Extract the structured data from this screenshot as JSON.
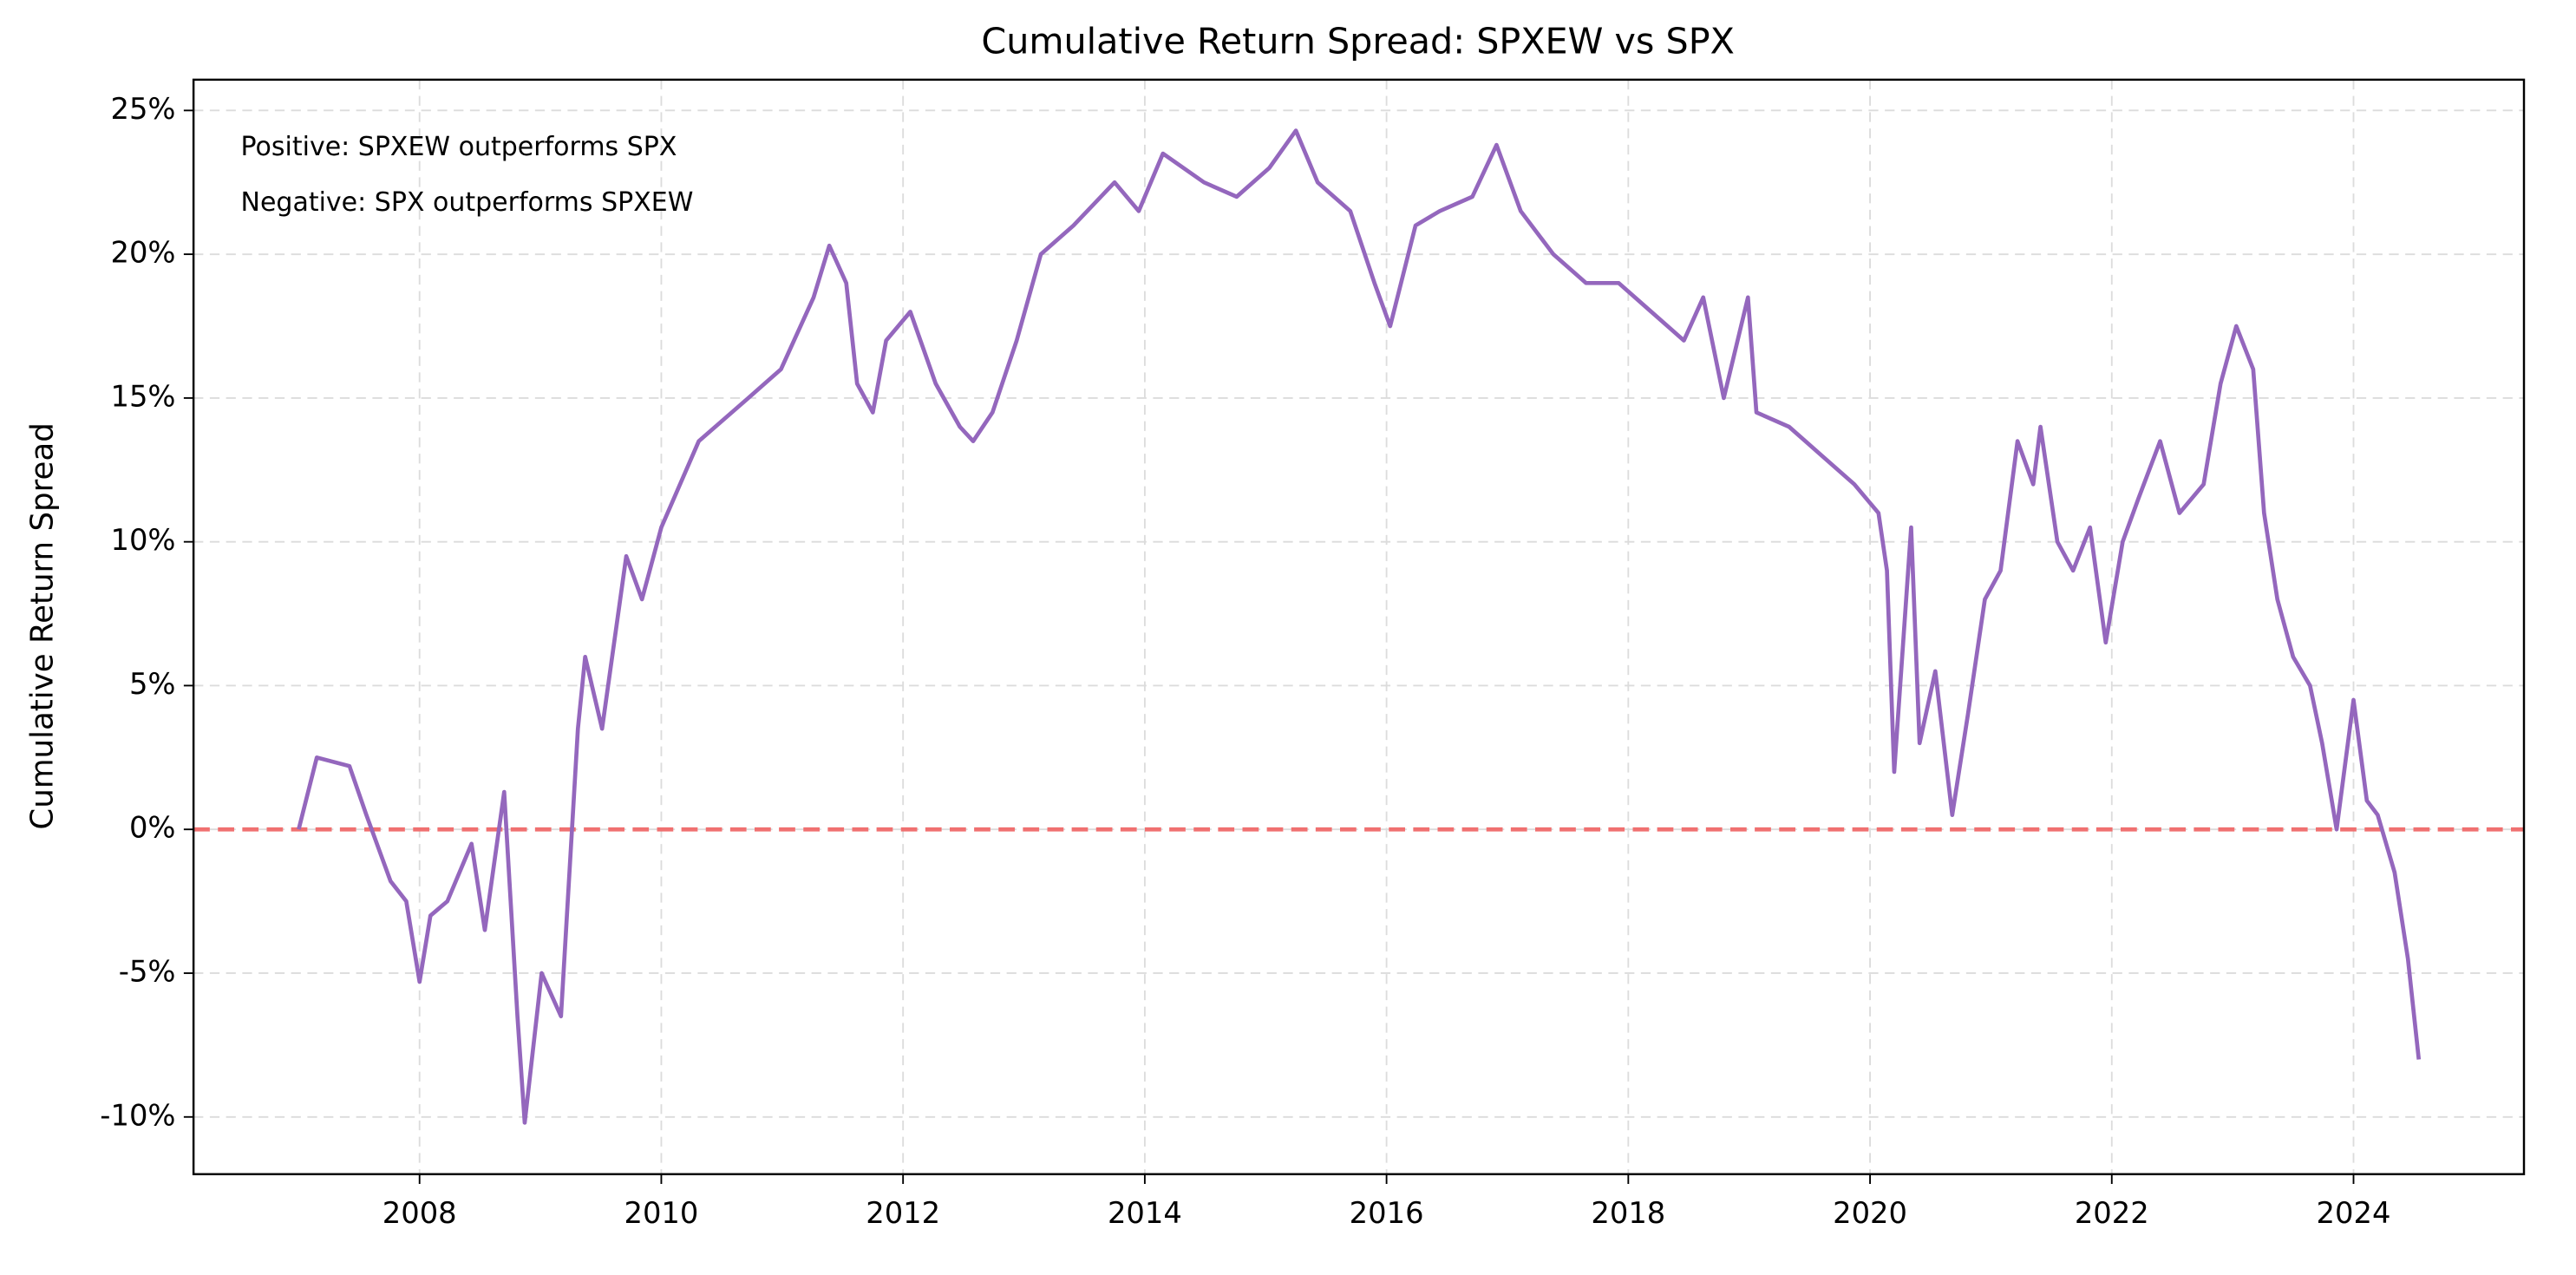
{
  "chart_data": {
    "type": "line",
    "title": "Cumulative Return Spread: SPXEW vs SPX",
    "y_label": "Cumulative Return Spread",
    "annotations": [
      "Positive: SPXEW outperforms SPX",
      "Negative: SPX outperforms SPXEW"
    ],
    "x": [
      2007.0,
      2007.15,
      2007.42,
      2007.56,
      2007.76,
      2007.89,
      2008.0,
      2008.09,
      2008.23,
      2008.43,
      2008.54,
      2008.7,
      2008.81,
      2008.87,
      2009.01,
      2009.17,
      2009.31,
      2009.37,
      2009.51,
      2009.71,
      2009.84,
      2010.0,
      2010.31,
      2010.72,
      2010.99,
      2011.26,
      2011.39,
      2011.53,
      2011.62,
      2011.75,
      2011.86,
      2012.06,
      2012.27,
      2012.47,
      2012.58,
      2012.74,
      2012.94,
      2013.14,
      2013.41,
      2013.75,
      2013.95,
      2014.15,
      2014.49,
      2014.76,
      2015.03,
      2015.25,
      2015.43,
      2015.7,
      2015.9,
      2016.03,
      2016.24,
      2016.44,
      2016.71,
      2016.91,
      2017.11,
      2017.38,
      2017.65,
      2017.92,
      2018.19,
      2018.46,
      2018.62,
      2018.79,
      2018.99,
      2019.06,
      2019.33,
      2019.6,
      2019.87,
      2020.07,
      2020.14,
      2020.2,
      2020.34,
      2020.41,
      2020.54,
      2020.68,
      2020.81,
      2020.95,
      2021.08,
      2021.22,
      2021.35,
      2021.41,
      2021.55,
      2021.68,
      2021.82,
      2021.95,
      2022.09,
      2022.22,
      2022.4,
      2022.56,
      2022.76,
      2022.9,
      2023.03,
      2023.17,
      2023.26,
      2023.37,
      2023.5,
      2023.64,
      2023.74,
      2023.86,
      2024.0,
      2024.11,
      2024.2,
      2024.34,
      2024.45,
      2024.54
    ],
    "series": [
      {
        "name": "Spread",
        "color": "#9467bd",
        "values": [
          0,
          2.5,
          2.2,
          0.5,
          -1.8,
          -2.5,
          -5.3,
          -3,
          -2.5,
          -0.5,
          -3.5,
          1.3,
          -6.5,
          -10.2,
          -5,
          -6.5,
          3.5,
          6,
          3.5,
          9.5,
          8,
          10.5,
          13.5,
          15,
          16,
          18.5,
          20.3,
          19,
          15.5,
          14.5,
          17,
          18,
          15.5,
          14,
          13.5,
          14.5,
          17,
          20,
          21,
          22.5,
          21.5,
          23.5,
          22.5,
          22,
          23,
          24.3,
          22.5,
          21.5,
          19,
          17.5,
          21,
          21.5,
          22,
          23.8,
          21.5,
          20,
          19,
          19,
          18,
          17,
          18.5,
          15,
          18.5,
          14.5,
          14,
          13,
          12,
          11,
          9,
          2,
          10.5,
          3,
          5.5,
          0.5,
          4,
          8,
          9,
          13.5,
          12,
          14,
          10,
          9,
          10.5,
          6.5,
          10,
          11.5,
          13.5,
          11,
          12,
          15.5,
          17.5,
          16,
          11,
          8,
          6,
          5,
          3,
          0,
          4.5,
          1,
          0.5,
          -1.5,
          -4.5,
          -8
        ]
      }
    ],
    "reference_line": {
      "y": 0,
      "color": "#f07070"
    },
    "xlim": [
      2006.13,
      2025.41
    ],
    "xticks": [
      2008,
      2010,
      2012,
      2014,
      2016,
      2018,
      2020,
      2022,
      2024
    ],
    "ylim": [
      -11.99,
      26.07
    ],
    "yticks": [
      {
        "value": -10,
        "label": "-10%"
      },
      {
        "value": -5,
        "label": "-5%"
      },
      {
        "value": 0,
        "label": "0%"
      },
      {
        "value": 5,
        "label": "5%"
      },
      {
        "value": 10,
        "label": "10%"
      },
      {
        "value": 15,
        "label": "15%"
      },
      {
        "value": 20,
        "label": "20%"
      },
      {
        "value": 25,
        "label": "25%"
      }
    ],
    "grid": true
  }
}
